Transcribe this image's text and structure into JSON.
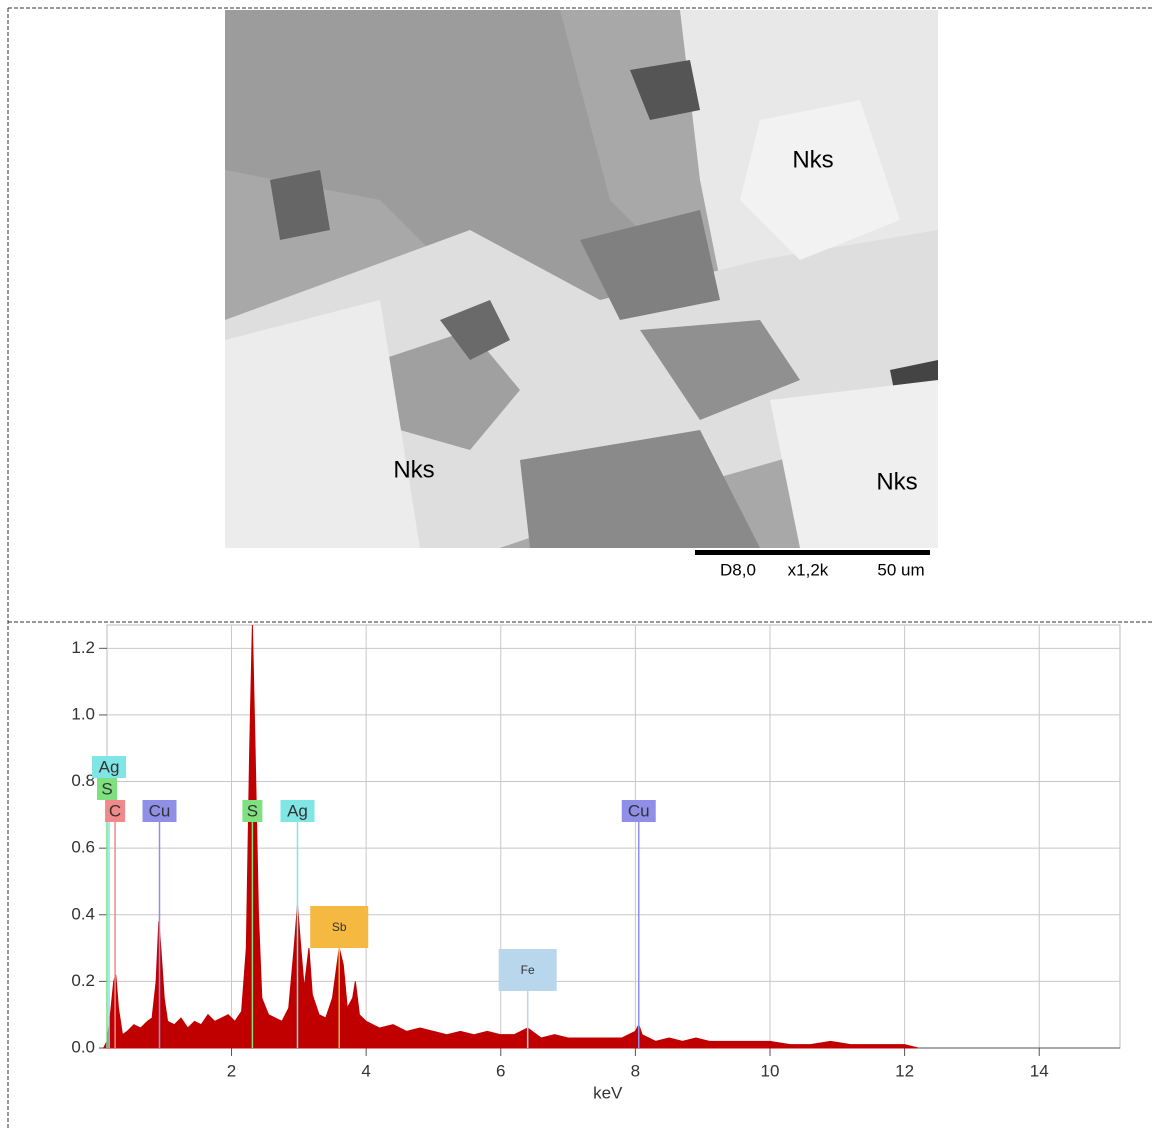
{
  "image": {
    "labels": [
      "Nks",
      "Nks",
      "Nks"
    ],
    "scale": [
      "D8,0",
      "x1,2k",
      "50 um"
    ]
  },
  "chart_data": {
    "type": "area",
    "x_label": "keV",
    "color": "#c00000",
    "xlim": [
      0.15,
      15.2
    ],
    "ylim": [
      0,
      1.27
    ],
    "xticks": [
      2,
      4,
      6,
      8,
      10,
      12,
      14
    ],
    "yticks": [
      {
        "value": 0,
        "label": "0.0"
      },
      0.2,
      0.4,
      0.6,
      0.8,
      {
        "value": 1,
        "label": "1.0"
      },
      1.2
    ],
    "grid": true,
    "x": [
      0.1,
      0.15,
      0.2,
      0.25,
      0.28,
      0.32,
      0.38,
      0.45,
      0.55,
      0.65,
      0.75,
      0.82,
      0.88,
      0.92,
      0.95,
      1.0,
      1.05,
      1.15,
      1.25,
      1.35,
      1.45,
      1.55,
      1.65,
      1.75,
      1.85,
      1.95,
      2.05,
      2.15,
      2.22,
      2.27,
      2.31,
      2.35,
      2.4,
      2.45,
      2.55,
      2.65,
      2.75,
      2.85,
      2.93,
      2.98,
      3.03,
      3.08,
      3.15,
      3.2,
      3.3,
      3.4,
      3.5,
      3.6,
      3.66,
      3.72,
      3.8,
      3.84,
      3.9,
      4.0,
      4.2,
      4.4,
      4.6,
      4.8,
      5.0,
      5.2,
      5.4,
      5.6,
      5.8,
      6.0,
      6.2,
      6.4,
      6.6,
      6.8,
      7.0,
      7.2,
      7.4,
      7.6,
      7.8,
      8.0,
      8.05,
      8.1,
      8.3,
      8.5,
      8.7,
      8.9,
      9.1,
      9.4,
      9.7,
      10.0,
      10.3,
      10.6,
      10.9,
      11.2,
      11.6,
      12.0,
      12.2
    ],
    "values": [
      0,
      0.02,
      0.1,
      0.2,
      0.22,
      0.12,
      0.04,
      0.05,
      0.07,
      0.06,
      0.08,
      0.09,
      0.2,
      0.38,
      0.3,
      0.15,
      0.08,
      0.07,
      0.09,
      0.06,
      0.08,
      0.07,
      0.1,
      0.08,
      0.09,
      0.1,
      0.08,
      0.11,
      0.3,
      0.9,
      1.27,
      0.9,
      0.4,
      0.15,
      0.1,
      0.09,
      0.08,
      0.12,
      0.3,
      0.43,
      0.3,
      0.18,
      0.3,
      0.16,
      0.1,
      0.09,
      0.15,
      0.3,
      0.25,
      0.12,
      0.15,
      0.2,
      0.1,
      0.08,
      0.06,
      0.07,
      0.05,
      0.06,
      0.05,
      0.04,
      0.05,
      0.04,
      0.05,
      0.04,
      0.04,
      0.06,
      0.03,
      0.04,
      0.03,
      0.03,
      0.03,
      0.03,
      0.03,
      0.05,
      0.07,
      0.04,
      0.02,
      0.03,
      0.02,
      0.03,
      0.02,
      0.02,
      0.02,
      0.02,
      0.01,
      0.01,
      0.02,
      0.01,
      0.01,
      0.01,
      0
    ],
    "annotations": [
      {
        "text": "Ag",
        "x": 0.18,
        "color": "#7fe5e5"
      },
      {
        "text": "S",
        "x": 0.15,
        "color": "#7ee07e"
      },
      {
        "text": "C",
        "x": 0.27,
        "color": "#f08a8a"
      },
      {
        "text": "Cu",
        "x": 0.93,
        "color": "#8f8fe8"
      },
      {
        "text": "S",
        "x": 2.31,
        "color": "#7ee07e"
      },
      {
        "text": "Ag",
        "x": 2.98,
        "color": "#7fe5e5"
      },
      {
        "text": "Sb",
        "x": 3.6,
        "color": "#f5b942"
      },
      {
        "text": "Fe",
        "x": 6.4,
        "color": "#b8d6ec"
      },
      {
        "text": "Cu",
        "x": 8.05,
        "color": "#8f8fe8"
      }
    ]
  }
}
